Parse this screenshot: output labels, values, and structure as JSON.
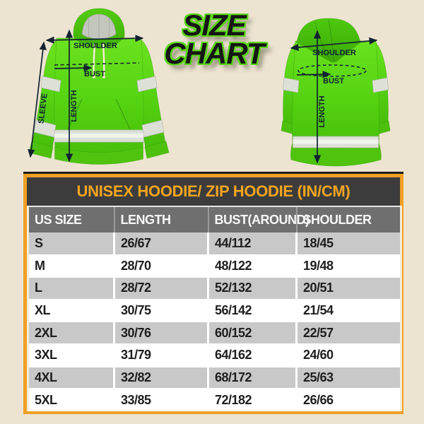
{
  "hero": {
    "title_line1": "SIZE",
    "title_line2": "CHART",
    "front_view": {
      "shoulder": "SHOULDER",
      "bust": "BUST",
      "length": "LENGTH",
      "sleeve": "SLEEVE"
    },
    "back_view": {
      "shoulder": "SHOULDER",
      "bust": "BUST",
      "length": "LENGTH"
    }
  },
  "chart_data": {
    "type": "table",
    "title": "UNISEX HOODIE/ ZIP HOODIE (IN/CM)",
    "columns": [
      "US SIZE",
      "LENGTH",
      "BUST(AROUND)",
      "SHOULDER"
    ],
    "rows": [
      [
        "S",
        "26/67",
        "44/112",
        "18/45"
      ],
      [
        "M",
        "28/70",
        "48/122",
        "19/48"
      ],
      [
        "L",
        "28/72",
        "52/132",
        "20/51"
      ],
      [
        "XL",
        "30/75",
        "56/142",
        "21/54"
      ],
      [
        "2XL",
        "30/76",
        "60/152",
        "22/57"
      ],
      [
        "3XL",
        "31/79",
        "64/162",
        "24/60"
      ],
      [
        "4XL",
        "32/82",
        "68/172",
        "25/63"
      ],
      [
        "5XL",
        "33/85",
        "72/182",
        "26/66"
      ]
    ]
  },
  "colors": {
    "background": "#ece4d1",
    "hoodie_green": "#58d513",
    "accent_orange": "#f0a027",
    "table_title_bg": "#3c3c3c",
    "table_header_bg": "#6f6f6f",
    "row_alt_gray": "#c8c8c8",
    "annotation_dark": "#122130"
  }
}
